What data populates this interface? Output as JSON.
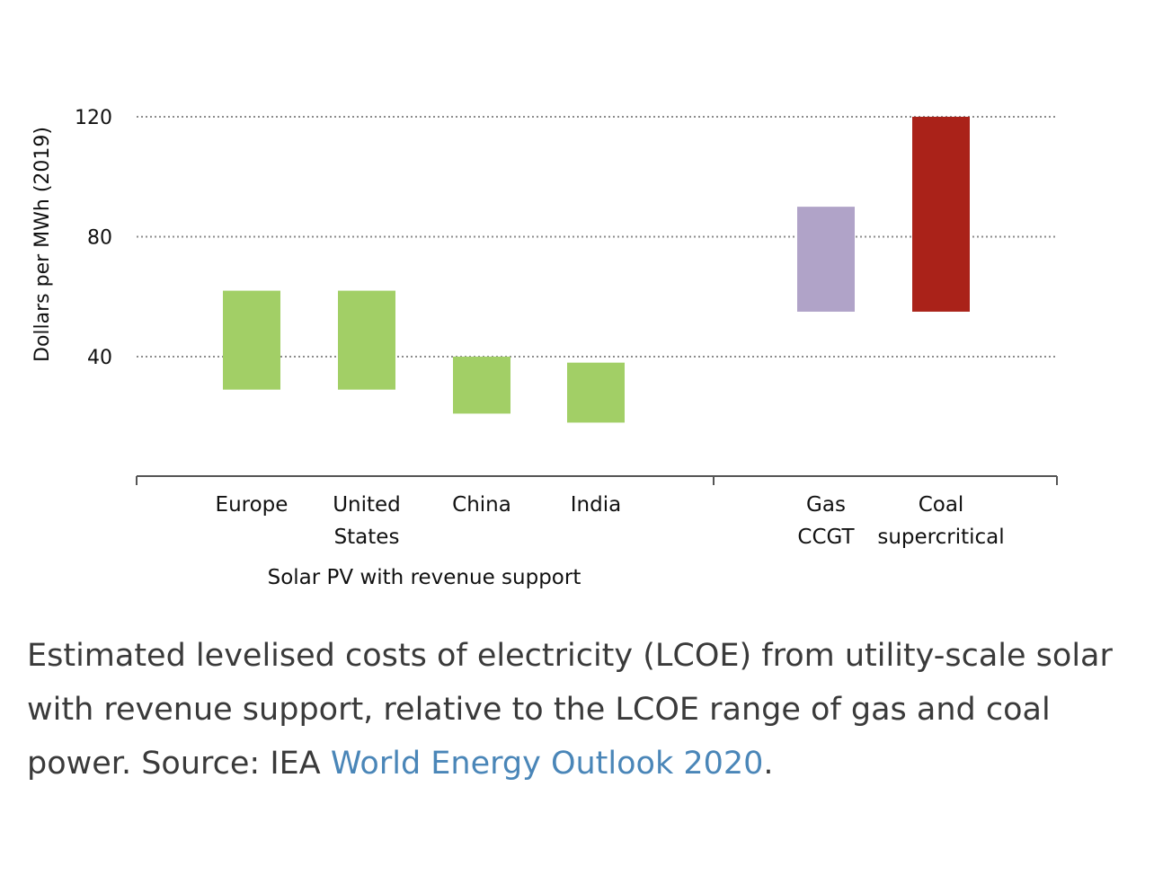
{
  "chart_data": {
    "type": "floating-bar",
    "ylabel": "Dollars per MWh (2019)",
    "yticks": [
      40,
      80,
      120
    ],
    "ylim": [
      0,
      120
    ],
    "grid": "horizontal dotted",
    "groups": [
      {
        "label": "Solar PV with revenue support",
        "categories": [
          {
            "label": [
              "Europe"
            ],
            "low": 29,
            "high": 62,
            "color": "#a2cf66"
          },
          {
            "label": [
              "United",
              "States"
            ],
            "low": 29,
            "high": 62,
            "color": "#a2cf66"
          },
          {
            "label": [
              "China"
            ],
            "low": 21,
            "high": 40,
            "color": "#a2cf66"
          },
          {
            "label": [
              "India"
            ],
            "low": 18,
            "high": 38,
            "color": "#a2cf66"
          }
        ]
      },
      {
        "label": "",
        "categories": [
          {
            "label": [
              "Gas",
              "CCGT"
            ],
            "low": 55,
            "high": 90,
            "color": "#b0a3c8"
          },
          {
            "label": [
              "Coal",
              "supercritical"
            ],
            "low": 55,
            "high": 120,
            "color": "#aa2219"
          }
        ]
      }
    ]
  },
  "caption": {
    "text": "Estimated levelised costs of electricity (LCOE) from utility-scale solar with revenue support, relative to the LCOE range of gas and coal power. Source: IEA ",
    "link": "World Energy Outlook 2020",
    "end": "."
  }
}
